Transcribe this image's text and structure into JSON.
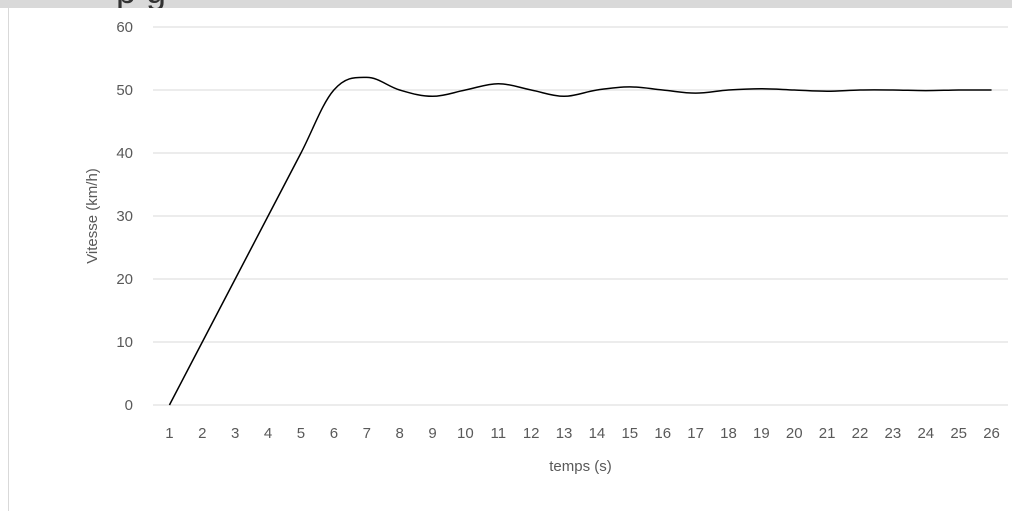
{
  "header": {
    "partial_title": "p                        g"
  },
  "chart_data": {
    "type": "line",
    "title": "",
    "xlabel": "temps (s)",
    "ylabel": "Vitesse (km/h)",
    "ylim": [
      0,
      60
    ],
    "yticks": [
      0,
      10,
      20,
      30,
      40,
      50,
      60
    ],
    "grid": true,
    "legend": "none",
    "line_color": "#000000",
    "grid_color": "#d9d9d9",
    "categories": [
      "1",
      "2",
      "3",
      "4",
      "5",
      "6",
      "7",
      "8",
      "9",
      "10",
      "11",
      "12",
      "13",
      "14",
      "15",
      "16",
      "17",
      "18",
      "19",
      "20",
      "21",
      "22",
      "23",
      "24",
      "25",
      "26"
    ],
    "series": [
      {
        "values": [
          0,
          10,
          20,
          30,
          40,
          50,
          52,
          50,
          49,
          50,
          51,
          50,
          49,
          50,
          50.5,
          50,
          49.5,
          50,
          50.2,
          50,
          49.8,
          50,
          50,
          49.9,
          50,
          50
        ]
      }
    ]
  }
}
